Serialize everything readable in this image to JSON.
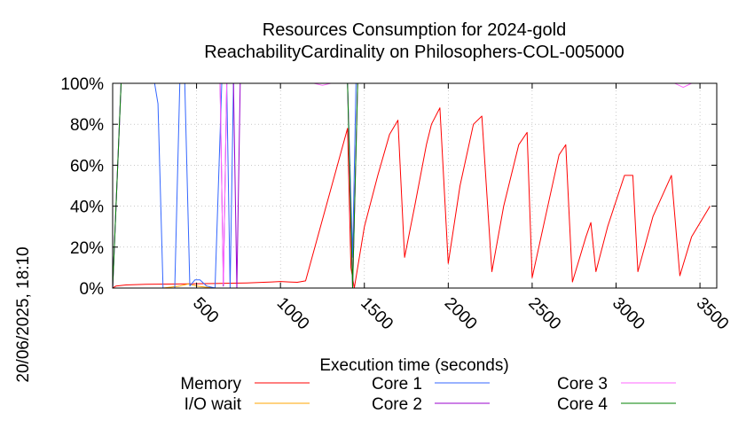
{
  "chart_data": {
    "type": "line",
    "title": "Resources Consumption for 2024-gold",
    "subtitle": "ReachabilityCardinality on Philosophers-COL-005000",
    "xlabel": "Execution time (seconds)",
    "ylabel": "",
    "timestamp": "20/06/2025, 18:10",
    "xlim": [
      0,
      3600
    ],
    "ylim": [
      0,
      100
    ],
    "xticks": [
      500,
      1000,
      1500,
      2000,
      2500,
      3000,
      3500
    ],
    "yticks": [
      0,
      20,
      40,
      60,
      80,
      100
    ],
    "ytick_suffix": "%",
    "legend_position": "bottom",
    "series": [
      {
        "name": "Memory",
        "color": "#ff0000",
        "points": [
          [
            0,
            0
          ],
          [
            20,
            1
          ],
          [
            80,
            1.5
          ],
          [
            200,
            1.8
          ],
          [
            400,
            2
          ],
          [
            600,
            2.2
          ],
          [
            800,
            2.5
          ],
          [
            950,
            3
          ],
          [
            1000,
            3.2
          ],
          [
            1050,
            3
          ],
          [
            1100,
            2.8
          ],
          [
            1150,
            3.5
          ],
          [
            1400,
            78
          ],
          [
            1420,
            10
          ],
          [
            1440,
            0
          ],
          [
            1500,
            30
          ],
          [
            1580,
            55
          ],
          [
            1650,
            75
          ],
          [
            1700,
            82
          ],
          [
            1740,
            15
          ],
          [
            1800,
            40
          ],
          [
            1870,
            70
          ],
          [
            1900,
            80
          ],
          [
            1950,
            88
          ],
          [
            2000,
            12
          ],
          [
            2070,
            50
          ],
          [
            2150,
            80
          ],
          [
            2200,
            84
          ],
          [
            2260,
            8
          ],
          [
            2330,
            40
          ],
          [
            2420,
            70
          ],
          [
            2470,
            76
          ],
          [
            2500,
            5
          ],
          [
            2580,
            35
          ],
          [
            2660,
            65
          ],
          [
            2700,
            70
          ],
          [
            2740,
            3
          ],
          [
            2820,
            25
          ],
          [
            2850,
            32
          ],
          [
            2880,
            8
          ],
          [
            2950,
            30
          ],
          [
            3050,
            55
          ],
          [
            3100,
            55
          ],
          [
            3130,
            8
          ],
          [
            3220,
            35
          ],
          [
            3330,
            55
          ],
          [
            3380,
            6
          ],
          [
            3450,
            25
          ],
          [
            3560,
            40
          ]
        ]
      },
      {
        "name": "I/O wait",
        "color": "#ffa500",
        "points": [
          [
            0,
            0
          ],
          [
            300,
            0
          ],
          [
            400,
            1
          ],
          [
            450,
            2
          ],
          [
            500,
            1
          ],
          [
            600,
            0
          ],
          [
            700,
            0
          ],
          [
            800,
            0
          ],
          [
            1400,
            0
          ],
          [
            1430,
            0
          ],
          [
            3560,
            0
          ]
        ]
      },
      {
        "name": "Core 1",
        "color": "#3366ff",
        "points": [
          [
            0,
            0
          ],
          [
            50,
            100
          ],
          [
            250,
            100
          ],
          [
            270,
            90
          ],
          [
            300,
            0
          ],
          [
            370,
            0
          ],
          [
            400,
            100
          ],
          [
            430,
            100
          ],
          [
            460,
            1
          ],
          [
            490,
            4
          ],
          [
            520,
            4
          ],
          [
            560,
            1
          ],
          [
            610,
            0
          ],
          [
            650,
            100
          ],
          [
            680,
            100
          ],
          [
            700,
            0
          ],
          [
            720,
            100
          ],
          [
            1400,
            100
          ],
          [
            1430,
            15
          ],
          [
            1450,
            100
          ],
          [
            3560,
            100
          ]
        ]
      },
      {
        "name": "Core 2",
        "color": "#9900cc",
        "points": [
          [
            0,
            0
          ],
          [
            50,
            100
          ],
          [
            640,
            100
          ],
          [
            660,
            1
          ],
          [
            680,
            100
          ],
          [
            720,
            100
          ],
          [
            740,
            0
          ],
          [
            760,
            100
          ],
          [
            1400,
            100
          ],
          [
            1430,
            0
          ],
          [
            1460,
            100
          ],
          [
            3560,
            100
          ]
        ]
      },
      {
        "name": "Core 3",
        "color": "#ff66ff",
        "points": [
          [
            0,
            0
          ],
          [
            50,
            100
          ],
          [
            640,
            100
          ],
          [
            660,
            2
          ],
          [
            680,
            100
          ],
          [
            1200,
            100
          ],
          [
            1250,
            99
          ],
          [
            1300,
            100
          ],
          [
            1400,
            100
          ],
          [
            1430,
            0
          ],
          [
            1460,
            100
          ],
          [
            3350,
            100
          ],
          [
            3400,
            98
          ],
          [
            3450,
            100
          ],
          [
            3560,
            100
          ]
        ]
      },
      {
        "name": "Core 4",
        "color": "#008000",
        "points": [
          [
            0,
            0
          ],
          [
            50,
            100
          ],
          [
            1400,
            100
          ],
          [
            1430,
            0
          ],
          [
            1460,
            100
          ],
          [
            3560,
            100
          ]
        ]
      }
    ]
  }
}
